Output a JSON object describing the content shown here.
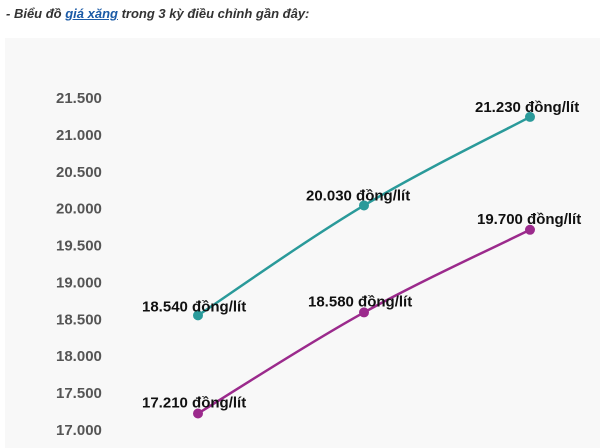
{
  "caption": {
    "prefix": "- Biểu đồ ",
    "link_text": "giá xăng",
    "suffix": " trong 3 kỳ điều chỉnh gần đây:"
  },
  "chart_data": {
    "type": "line",
    "ylim": [
      17000,
      21500
    ],
    "yticks": [
      "17.000",
      "17.500",
      "18.000",
      "18.500",
      "19.000",
      "19.500",
      "20.000",
      "20.500",
      "21.000",
      "21.500"
    ],
    "grid": false,
    "series": [
      {
        "color": "#2a9a9a",
        "values": [
          18540,
          20030,
          21230
        ],
        "labels": [
          "18.540 đồng/lít",
          "20.030 đồng/lít",
          "21.230 đồng/lít"
        ]
      },
      {
        "color": "#9b2a8c",
        "values": [
          17210,
          18580,
          19700
        ],
        "labels": [
          "17.210 đồng/lít",
          "18.580 đồng/lít",
          "19.700 đồng/lít"
        ]
      }
    ]
  }
}
